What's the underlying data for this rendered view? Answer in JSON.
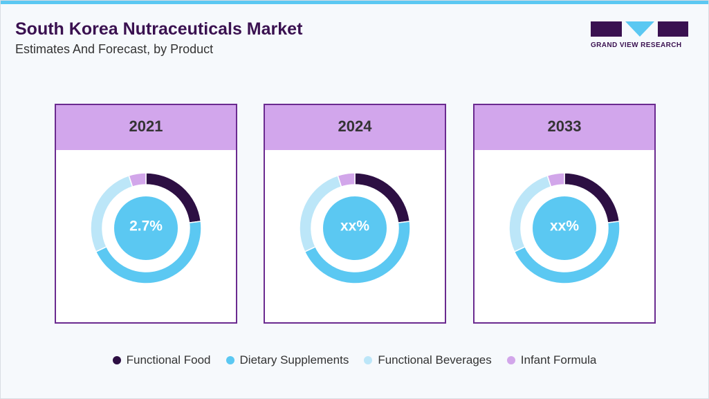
{
  "header": {
    "title": "South Korea Nutraceuticals Market",
    "subtitle": "Estimates And Forecast, by Product",
    "logo": "GRAND VIEW RESEARCH"
  },
  "chart_data": [
    {
      "type": "donut",
      "title": "2021",
      "center_label": "2.7%",
      "categories": [
        "Functional Food",
        "Dietary Supplements",
        "Functional Beverages",
        "Infant Formula"
      ],
      "values": [
        23,
        45,
        27,
        5
      ],
      "colors": [
        "#2d0f43",
        "#5bc8f2",
        "#bce6f8",
        "#d2a6ea"
      ]
    },
    {
      "type": "donut",
      "title": "2024",
      "center_label": "xx%",
      "categories": [
        "Functional Food",
        "Dietary Supplements",
        "Functional Beverages",
        "Infant Formula"
      ],
      "values": [
        23,
        45,
        27,
        5
      ],
      "colors": [
        "#2d0f43",
        "#5bc8f2",
        "#bce6f8",
        "#d2a6ea"
      ]
    },
    {
      "type": "donut",
      "title": "2033",
      "center_label": "xx%",
      "categories": [
        "Functional Food",
        "Dietary Supplements",
        "Functional Beverages",
        "Infant Formula"
      ],
      "values": [
        23,
        45,
        27,
        5
      ],
      "colors": [
        "#2d0f43",
        "#5bc8f2",
        "#bce6f8",
        "#d2a6ea"
      ]
    }
  ]
}
